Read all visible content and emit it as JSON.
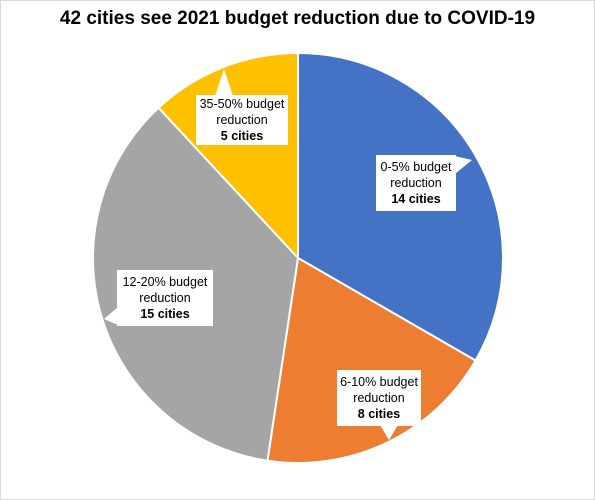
{
  "chart_data": {
    "type": "pie",
    "title": "42 cities see 2021 budget reduction due to COVID-19",
    "slices": [
      {
        "label_lines": [
          "0-5% budget",
          "reduction"
        ],
        "count_label": "14 cities",
        "value": 14,
        "color": "#4472C4"
      },
      {
        "label_lines": [
          "6-10% budget",
          "reduction"
        ],
        "count_label": "8 cities",
        "value": 8,
        "color": "#ED7D31"
      },
      {
        "label_lines": [
          "12-20% budget",
          "reduction"
        ],
        "count_label": "15 cities",
        "value": 15,
        "color": "#A5A5A5"
      },
      {
        "label_lines": [
          "35-50% budget",
          "reduction"
        ],
        "count_label": "5 cities",
        "value": 5,
        "color": "#FFC000"
      }
    ],
    "legend": "none"
  }
}
